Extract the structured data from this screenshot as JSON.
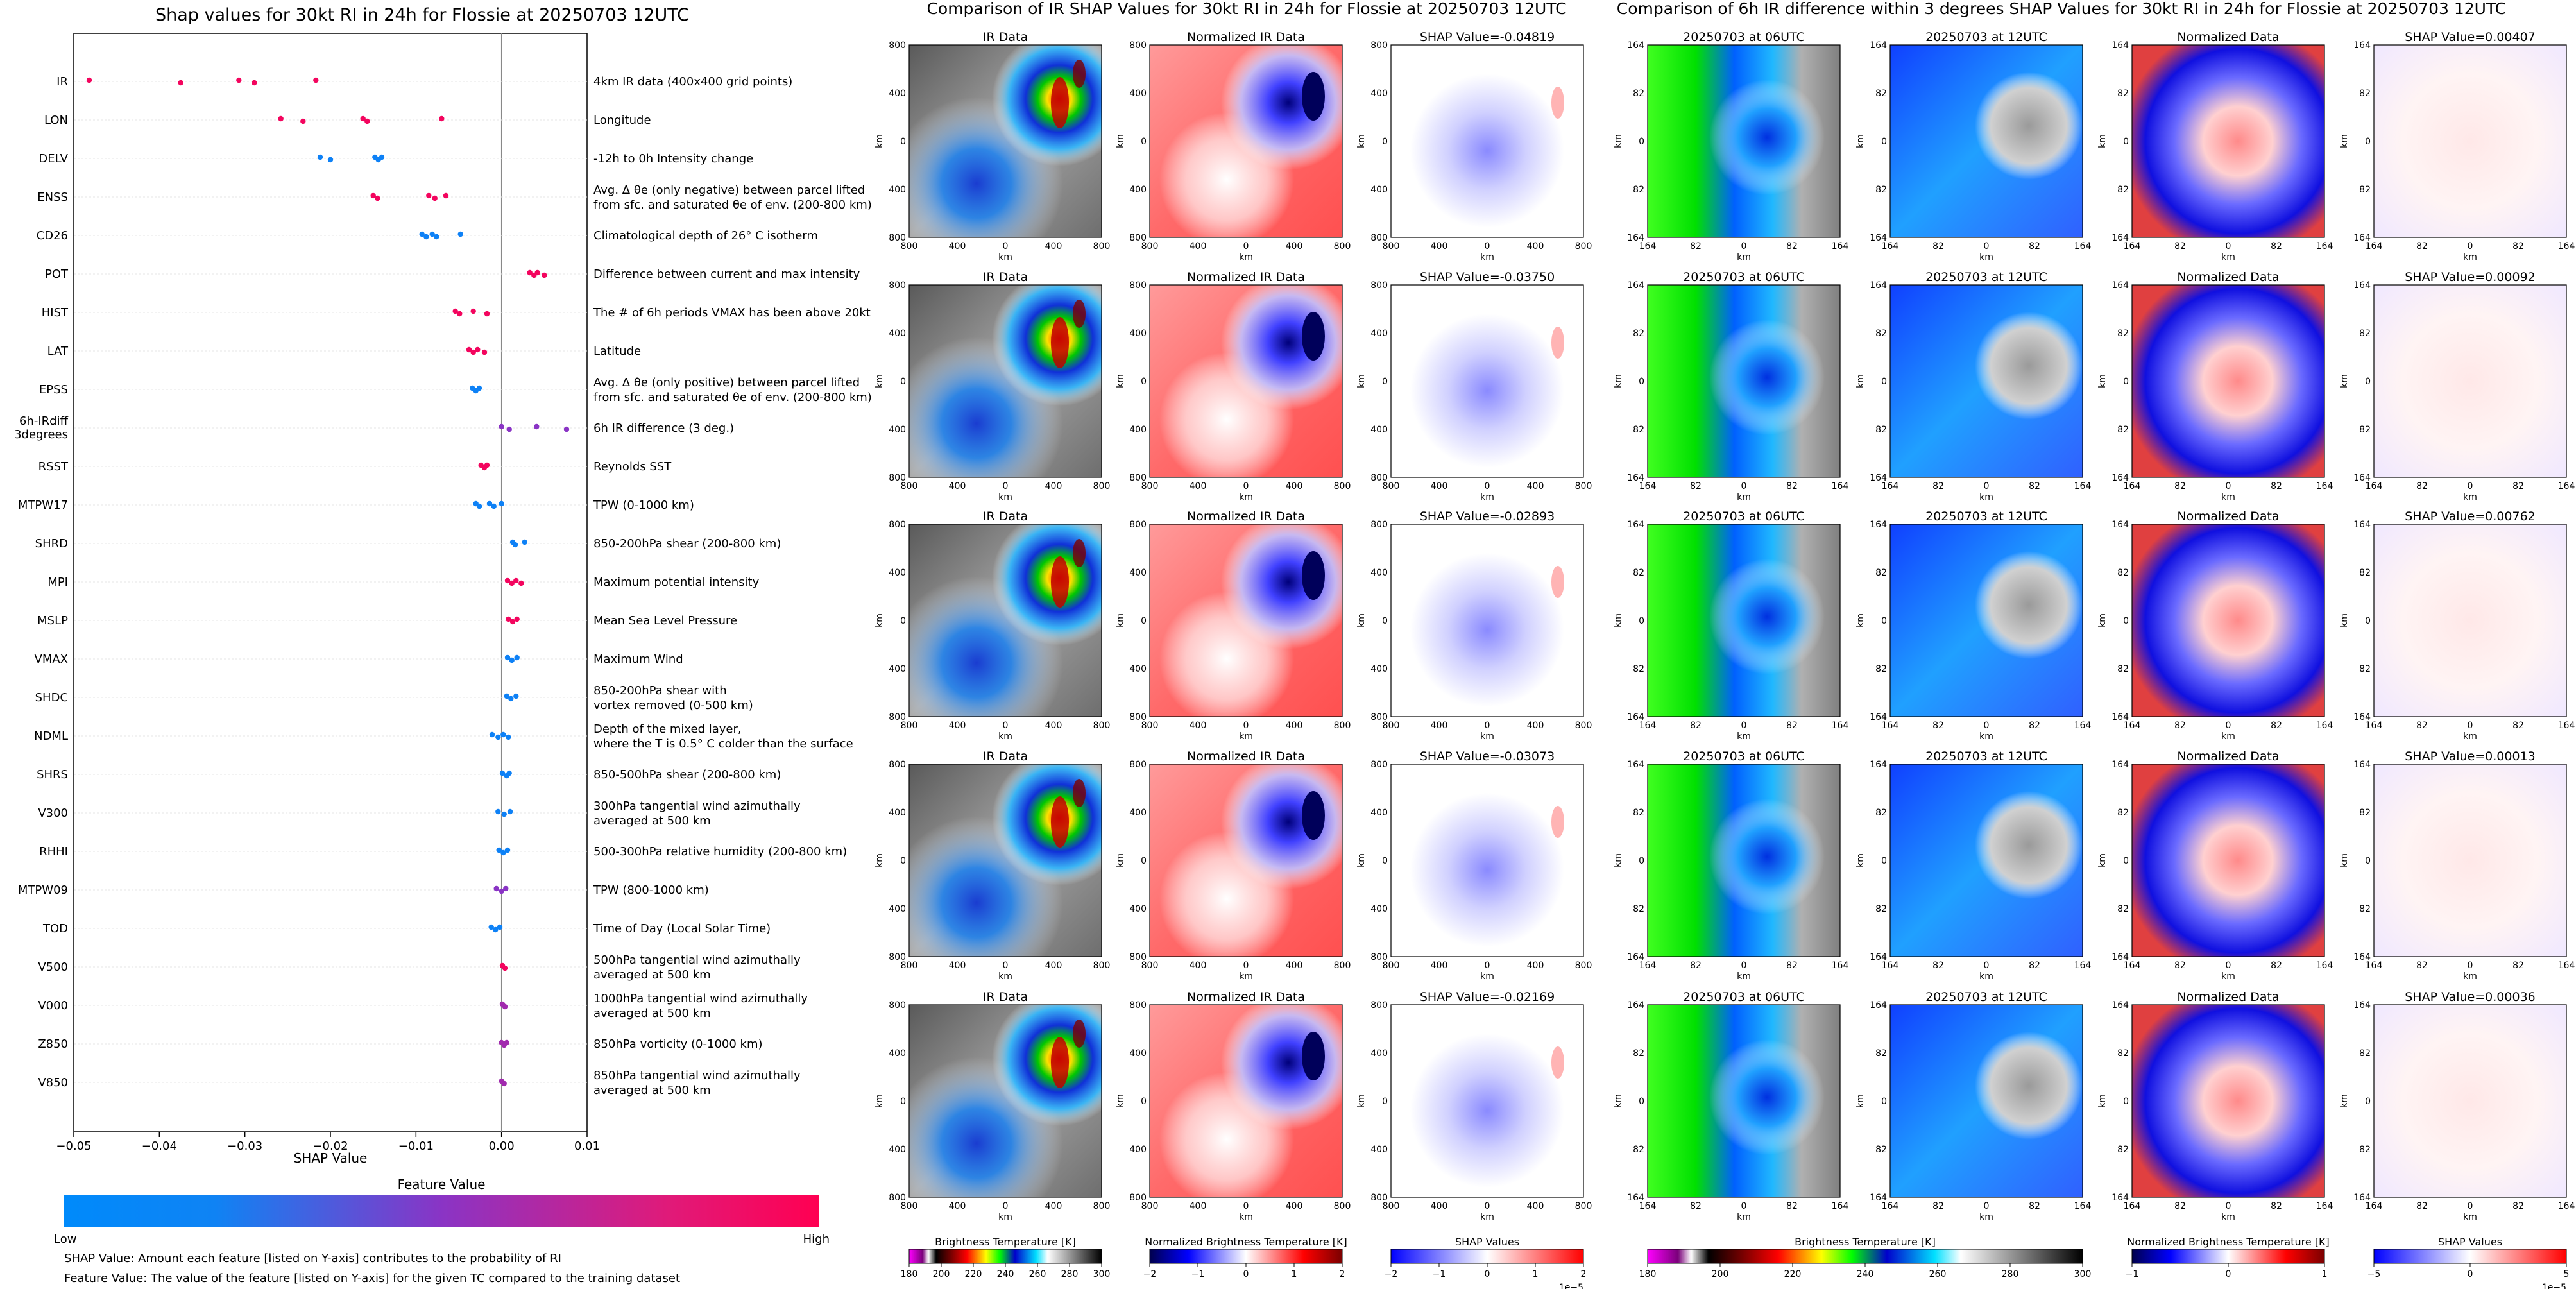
{
  "left_panel": {
    "title": "Shap values for 30kt RI in 24h for Flossie at 20250703 12UTC",
    "xlabel": "SHAP Value",
    "colorbar_title": "Feature Value",
    "colorbar_low": "Low",
    "colorbar_high": "High",
    "note1": "SHAP Value: Amount each feature [listed on Y-axis] contributes to the probability of RI",
    "note2": "Feature Value: The value of the feature [listed on Y-axis] for the given TC compared to the training dataset"
  },
  "ir_section": {
    "title": "Comparison of IR SHAP Values for 30kt RI in 24h for Flossie at 20250703 12UTC",
    "col_titles": [
      "IR Data",
      "Normalized IR Data"
    ],
    "shap_titles": [
      "SHAP Value=-0.04819",
      "SHAP Value=-0.03750",
      "SHAP Value=-0.02893",
      "SHAP Value=-0.03073",
      "SHAP Value=-0.02169"
    ],
    "axis_unit": "km",
    "ticks": [
      "800",
      "400",
      "0",
      "400",
      "800"
    ],
    "cb1_label": "Brightness Temperature [K]",
    "cb1_ticks": [
      "180",
      "200",
      "220",
      "240",
      "260",
      "280",
      "300"
    ],
    "cb2_label": "Normalized Brightness Temperature [K]",
    "cb2_ticks": [
      "−2",
      "−1",
      "0",
      "1",
      "2"
    ],
    "cb3_label": "SHAP Values",
    "cb3_ticks": [
      "−2",
      "−1",
      "0",
      "1",
      "2"
    ],
    "cb3_exp": "1e−5"
  },
  "diff_section": {
    "title": "Comparison of 6h IR difference within 3 degrees SHAP Values for 30kt RI in 24h for Flossie at 20250703 12UTC",
    "col_titles": [
      "20250703 at 06UTC",
      "20250703 at 12UTC",
      "Normalized Data"
    ],
    "shap_titles": [
      "SHAP Value=0.00407",
      "SHAP Value=0.00092",
      "SHAP Value=0.00762",
      "SHAP Value=0.00013",
      "SHAP Value=0.00036"
    ],
    "axis_unit": "km",
    "ticks": [
      "164",
      "82",
      "0",
      "82",
      "164"
    ],
    "cb1_label": "Brightness Temperature [K]",
    "cb1_ticks": [
      "180",
      "200",
      "220",
      "240",
      "260",
      "280",
      "300"
    ],
    "cb2_label": "Normalized Brightness Temperature [K]",
    "cb2_ticks": [
      "−1",
      "0",
      "1"
    ],
    "cb3_label": "SHAP Values",
    "cb3_ticks": [
      "−5",
      "0",
      "5"
    ],
    "cb3_exp": "1e−5"
  },
  "chart_data": {
    "type": "scatter",
    "title": "Shap values for 30kt RI in 24h for Flossie at 20250703 12UTC",
    "xlabel": "SHAP Value",
    "xlim": [
      -0.05,
      0.01
    ],
    "xticks": [
      "−0.05",
      "−0.04",
      "−0.03",
      "−0.02",
      "−0.01",
      "0.00",
      "0.01"
    ],
    "colors": {
      "low": "#008afb",
      "mid": "#8a34c5",
      "high": "#ff0052"
    },
    "features": [
      {
        "name": "IR",
        "desc": [
          "4km IR data (400x400 grid points)"
        ],
        "values": [
          -0.0482,
          -0.0375,
          -0.0307,
          -0.0289,
          -0.0217
        ],
        "fv": 0.95
      },
      {
        "name": "LON",
        "desc": [
          "Longitude"
        ],
        "values": [
          -0.0258,
          -0.0232,
          -0.0162,
          -0.0157,
          -0.007
        ],
        "fv": 0.95
      },
      {
        "name": "DELV",
        "desc": [
          "-12h to 0h Intensity change"
        ],
        "values": [
          -0.0212,
          -0.02,
          -0.0148,
          -0.0144,
          -0.014
        ],
        "fv": 0.05
      },
      {
        "name": "ENSS",
        "desc": [
          "Avg. Δ θe (only negative) between parcel lifted",
          "from sfc. and saturated θe of env. (200-800 km)"
        ],
        "values": [
          -0.015,
          -0.0145,
          -0.0085,
          -0.0078,
          -0.0065
        ],
        "fv": 0.95
      },
      {
        "name": "CD26",
        "desc": [
          "Climatological depth of 26° C isotherm"
        ],
        "values": [
          -0.0093,
          -0.0088,
          -0.0081,
          -0.0076,
          -0.0048
        ],
        "fv": 0.05
      },
      {
        "name": "POT",
        "desc": [
          "Difference between current and max intensity"
        ],
        "values": [
          0.0033,
          0.0038,
          0.0042,
          0.005
        ],
        "fv": 0.95
      },
      {
        "name": "HIST",
        "desc": [
          "The # of 6h periods VMAX has been above 20kt"
        ],
        "values": [
          -0.0054,
          -0.0049,
          -0.0033,
          -0.0017
        ],
        "fv": 0.95
      },
      {
        "name": "LAT",
        "desc": [
          "Latitude"
        ],
        "values": [
          -0.0038,
          -0.0033,
          -0.0028,
          -0.002
        ],
        "fv": 0.95
      },
      {
        "name": "EPSS",
        "desc": [
          "Avg. Δ θe (only positive) between parcel lifted",
          "from sfc. and saturated θe of env. (200-800 km)"
        ],
        "values": [
          -0.0034,
          -0.003,
          -0.0026
        ],
        "fv": 0.05
      },
      {
        "name": "6h-IRdiff 3degrees",
        "desc": [
          "6h IR difference (3 deg.)"
        ],
        "values": [
          0.0,
          0.0009,
          0.0041,
          0.0076
        ],
        "fv": 0.5
      },
      {
        "name": "RSST",
        "desc": [
          "Reynolds SST"
        ],
        "values": [
          -0.0024,
          -0.002,
          -0.0017
        ],
        "fv": 0.95
      },
      {
        "name": "MTPW17",
        "desc": [
          "TPW (0-1000 km)"
        ],
        "values": [
          -0.003,
          -0.0026,
          -0.0014,
          -0.0009,
          0.0
        ],
        "fv": 0.05
      },
      {
        "name": "SHRD",
        "desc": [
          "850-200hPa shear (200-800 km)"
        ],
        "values": [
          0.0013,
          0.0016,
          0.0027
        ],
        "fv": 0.05
      },
      {
        "name": "MPI",
        "desc": [
          "Maximum potential intensity"
        ],
        "values": [
          0.0007,
          0.0012,
          0.0017,
          0.0023
        ],
        "fv": 0.95
      },
      {
        "name": "MSLP",
        "desc": [
          "Mean Sea Level Pressure"
        ],
        "values": [
          0.0008,
          0.0013,
          0.0018
        ],
        "fv": 0.95
      },
      {
        "name": "VMAX",
        "desc": [
          "Maximum Wind"
        ],
        "values": [
          0.0007,
          0.0012,
          0.0018
        ],
        "fv": 0.05
      },
      {
        "name": "SHDC",
        "desc": [
          "850-200hPa shear with",
          "vortex removed (0-500 km)"
        ],
        "values": [
          0.0006,
          0.0011,
          0.0017
        ],
        "fv": 0.05
      },
      {
        "name": "NDML",
        "desc": [
          "Depth of the mixed layer,",
          "where the T is 0.5° C colder than the surface"
        ],
        "values": [
          -0.0011,
          -0.0004,
          0.0002,
          0.0008
        ],
        "fv": 0.05
      },
      {
        "name": "SHRS",
        "desc": [
          "850-500hPa shear (200-800 km)"
        ],
        "values": [
          0.0001,
          0.0006,
          0.0009
        ],
        "fv": 0.05
      },
      {
        "name": "V300",
        "desc": [
          "300hPa tangential wind azimuthally",
          "averaged at 500 km"
        ],
        "values": [
          -0.0004,
          0.0003,
          0.001
        ],
        "fv": 0.05
      },
      {
        "name": "RHHI",
        "desc": [
          "500-300hPa relative humidity (200-800 km)"
        ],
        "values": [
          -0.0003,
          0.0002,
          0.0007
        ],
        "fv": 0.05
      },
      {
        "name": "MTPW09",
        "desc": [
          "TPW (800-1000 km)"
        ],
        "values": [
          -0.0006,
          0.0,
          0.0005
        ],
        "fv": 0.5
      },
      {
        "name": "TOD",
        "desc": [
          "Time of Day (Local Solar Time)"
        ],
        "values": [
          -0.0012,
          -0.0007,
          -0.0002
        ],
        "fv": 0.05
      },
      {
        "name": "V500",
        "desc": [
          "500hPa tangential wind azimuthally",
          "averaged at 500 km"
        ],
        "values": [
          0.0001,
          0.0004
        ],
        "fv": 0.95
      },
      {
        "name": "V000",
        "desc": [
          "1000hPa tangential wind azimuthally",
          "averaged at 500 km"
        ],
        "values": [
          0.0001,
          0.0004
        ],
        "fv": 0.6
      },
      {
        "name": "Z850",
        "desc": [
          "850hPa vorticity (0-1000 km)"
        ],
        "values": [
          0.0,
          0.0003,
          0.0006
        ],
        "fv": 0.6
      },
      {
        "name": "V850",
        "desc": [
          "850hPa tangential wind azimuthally",
          "averaged at 500 km"
        ],
        "values": [
          0.0,
          0.0003
        ],
        "fv": 0.6
      }
    ]
  }
}
